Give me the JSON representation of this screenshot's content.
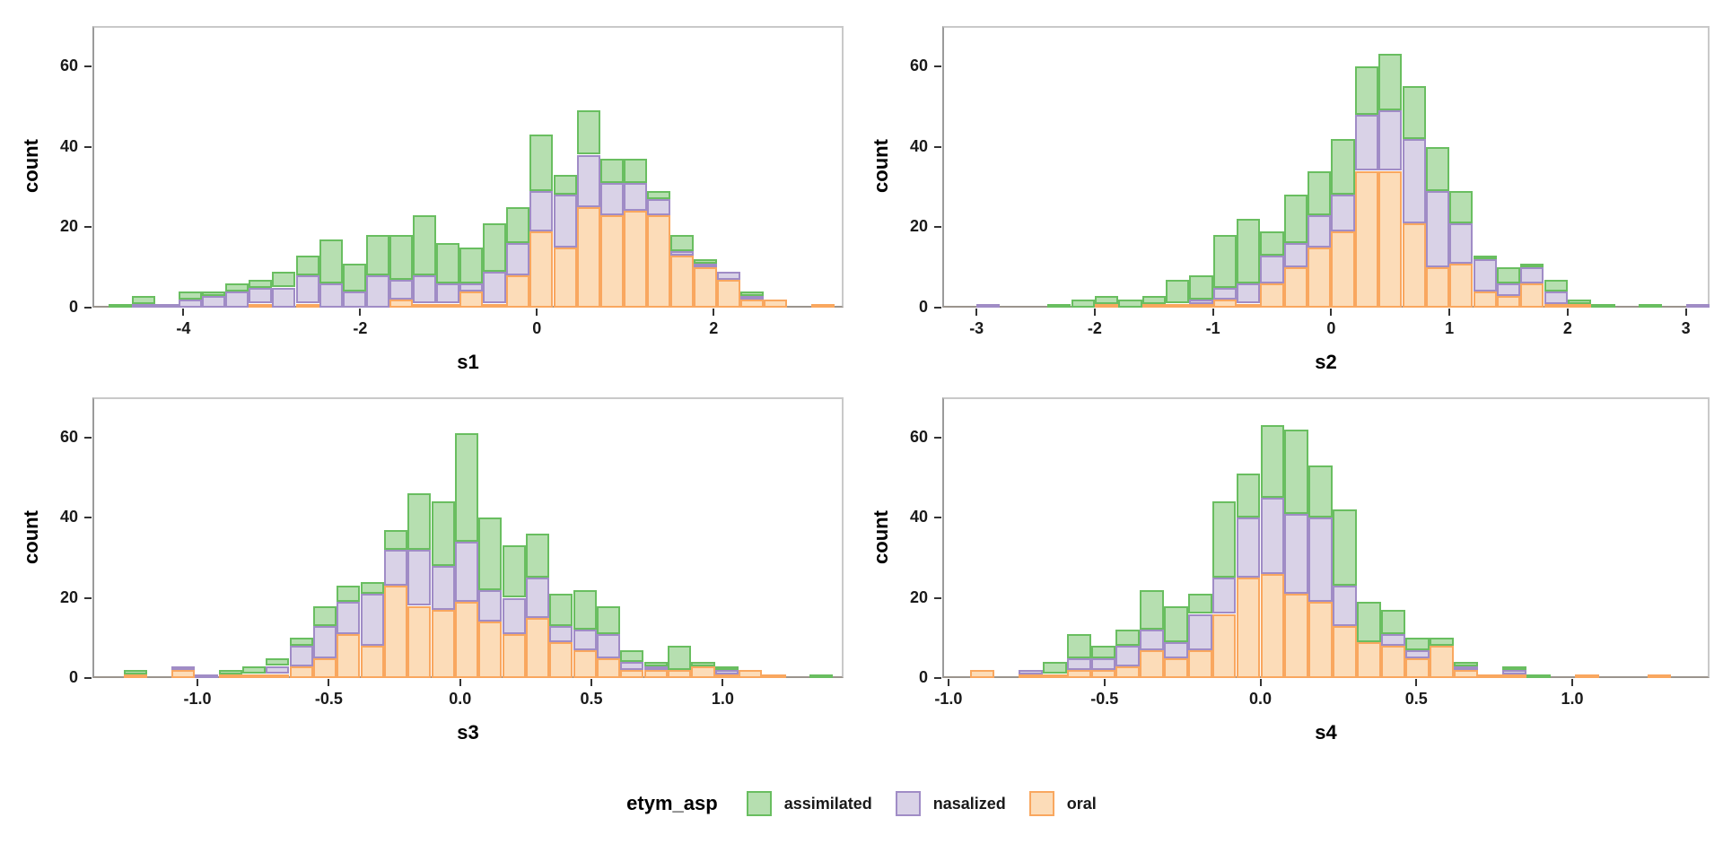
{
  "ylabel": "count",
  "colors": {
    "background": "#ffffff",
    "panel_border": "#c9c9c9",
    "axis_line": "#9b9b9b",
    "tick_color": "#333333",
    "text_color": "#000000",
    "series": {
      "oral": {
        "fill": "#fcdcb8",
        "stroke": "#f9a75f"
      },
      "nasalized": {
        "fill": "#d9d2e7",
        "stroke": "#a08cc6"
      },
      "assimilated": {
        "fill": "#b6dfb0",
        "stroke": "#69be60"
      }
    }
  },
  "legend": {
    "title": "etym_asp",
    "entries": [
      {
        "key": "assimilated",
        "label": "assimilated"
      },
      {
        "key": "nasalized",
        "label": "nasalized"
      },
      {
        "key": "oral",
        "label": "oral"
      }
    ]
  },
  "chart_data": [
    {
      "type": "bar",
      "subtype": "stacked-histogram",
      "title": "",
      "xlabel": "s1",
      "ylabel": "count",
      "grid": false,
      "xlim": [
        -5.03,
        3.47
      ],
      "ylim": [
        0,
        70
      ],
      "x_ticks": [
        -4,
        -2,
        0,
        2
      ],
      "x_tick_labels": [
        "-4",
        "-2",
        "0",
        "2"
      ],
      "y_ticks": [
        0,
        20,
        40,
        60
      ],
      "y_tick_labels": [
        "0",
        "20",
        "40",
        "60"
      ],
      "bin_start": -4.85,
      "bin_width": 0.265,
      "series_order": [
        "oral",
        "nasalized",
        "assimilated"
      ],
      "bars": [
        [
          0,
          0,
          1
        ],
        [
          0,
          1,
          2
        ],
        [
          0,
          1,
          0
        ],
        [
          0,
          2,
          2
        ],
        [
          0,
          3,
          1
        ],
        [
          0,
          4,
          2
        ],
        [
          1,
          4,
          2
        ],
        [
          0,
          5,
          4
        ],
        [
          1,
          7,
          5
        ],
        [
          0,
          6,
          11
        ],
        [
          0,
          4,
          7
        ],
        [
          0,
          8,
          10
        ],
        [
          2,
          5,
          11
        ],
        [
          1,
          7,
          15
        ],
        [
          1,
          5,
          10
        ],
        [
          4,
          2,
          9
        ],
        [
          1,
          8,
          12
        ],
        [
          8,
          8,
          9
        ],
        [
          19,
          10,
          14
        ],
        [
          15,
          13,
          5
        ],
        [
          25,
          13,
          11
        ],
        [
          23,
          8,
          6
        ],
        [
          24,
          7,
          6
        ],
        [
          23,
          4,
          2
        ],
        [
          13,
          1,
          4
        ],
        [
          10,
          1,
          1
        ],
        [
          7,
          2,
          0
        ],
        [
          2,
          1,
          1
        ],
        [
          2,
          0,
          0
        ],
        [
          0,
          0,
          0
        ],
        [
          1,
          0,
          0
        ]
      ]
    },
    {
      "type": "bar",
      "subtype": "stacked-histogram",
      "title": "",
      "xlabel": "s2",
      "ylabel": "count",
      "grid": false,
      "xlim": [
        -3.29,
        3.2
      ],
      "ylim": [
        0,
        70
      ],
      "x_ticks": [
        -3,
        -2,
        -1,
        0,
        1,
        2,
        3
      ],
      "x_tick_labels": [
        "-3",
        "-2",
        "-1",
        "0",
        "1",
        "2",
        "3"
      ],
      "y_ticks": [
        0,
        20,
        40,
        60
      ],
      "y_tick_labels": [
        "0",
        "20",
        "40",
        "60"
      ],
      "bin_start": -3.0,
      "bin_width": 0.2,
      "series_order": [
        "oral",
        "nasalized",
        "assimilated"
      ],
      "bars": [
        [
          0,
          1,
          0
        ],
        [
          0,
          0,
          0
        ],
        [
          0,
          0,
          0
        ],
        [
          0,
          0,
          1
        ],
        [
          0,
          0,
          2
        ],
        [
          1,
          0,
          2
        ],
        [
          0,
          0,
          2
        ],
        [
          1,
          0,
          2
        ],
        [
          1,
          0,
          6
        ],
        [
          1,
          1,
          6
        ],
        [
          2,
          3,
          13
        ],
        [
          1,
          5,
          16
        ],
        [
          6,
          7,
          6
        ],
        [
          10,
          6,
          12
        ],
        [
          15,
          8,
          11
        ],
        [
          19,
          9,
          14
        ],
        [
          34,
          14,
          12
        ],
        [
          34,
          15,
          14
        ],
        [
          21,
          21,
          13
        ],
        [
          10,
          19,
          11
        ],
        [
          11,
          10,
          8
        ],
        [
          4,
          8,
          1
        ],
        [
          3,
          3,
          4
        ],
        [
          6,
          4,
          1
        ],
        [
          1,
          3,
          3
        ],
        [
          1,
          0,
          1
        ],
        [
          0,
          0,
          1
        ],
        [
          0,
          0,
          0
        ],
        [
          0,
          0,
          1
        ],
        [
          0,
          0,
          0
        ],
        [
          0,
          1,
          0
        ]
      ]
    },
    {
      "type": "bar",
      "subtype": "stacked-histogram",
      "title": "",
      "xlabel": "s3",
      "ylabel": "count",
      "grid": false,
      "xlim": [
        -1.4,
        1.46
      ],
      "ylim": [
        0,
        70
      ],
      "x_ticks": [
        -1.0,
        -0.5,
        0.0,
        0.5,
        1.0
      ],
      "x_tick_labels": [
        "-1.0",
        "-0.5",
        "0.0",
        "0.5",
        "1.0"
      ],
      "y_ticks": [
        0,
        20,
        40,
        60
      ],
      "y_tick_labels": [
        "0",
        "20",
        "40",
        "60"
      ],
      "bin_start": -1.28,
      "bin_width": 0.09,
      "series_order": [
        "oral",
        "nasalized",
        "assimilated"
      ],
      "bars": [
        [
          1,
          0,
          1
        ],
        [
          0,
          0,
          0
        ],
        [
          2,
          1,
          0
        ],
        [
          0,
          1,
          0
        ],
        [
          1,
          0,
          1
        ],
        [
          1,
          0,
          2
        ],
        [
          1,
          2,
          2
        ],
        [
          3,
          5,
          2
        ],
        [
          5,
          8,
          5
        ],
        [
          11,
          8,
          4
        ],
        [
          8,
          13,
          3
        ],
        [
          23,
          9,
          5
        ],
        [
          18,
          14,
          14
        ],
        [
          17,
          11,
          16
        ],
        [
          19,
          15,
          27
        ],
        [
          14,
          8,
          18
        ],
        [
          11,
          9,
          13
        ],
        [
          15,
          10,
          11
        ],
        [
          9,
          4,
          8
        ],
        [
          7,
          5,
          10
        ],
        [
          5,
          6,
          7
        ],
        [
          2,
          2,
          3
        ],
        [
          2,
          1,
          1
        ],
        [
          2,
          0,
          6
        ],
        [
          3,
          0,
          1
        ],
        [
          1,
          1,
          1
        ],
        [
          2,
          0,
          0
        ],
        [
          1,
          0,
          0
        ],
        [
          0,
          0,
          0
        ],
        [
          0,
          0,
          1
        ]
      ]
    },
    {
      "type": "bar",
      "subtype": "stacked-histogram",
      "title": "",
      "xlabel": "s4",
      "ylabel": "count",
      "grid": false,
      "xlim": [
        -1.02,
        1.44
      ],
      "ylim": [
        0,
        70
      ],
      "x_ticks": [
        -1.0,
        -0.5,
        0.0,
        0.5,
        1.0
      ],
      "x_tick_labels": [
        "-1.0",
        "-0.5",
        "0.0",
        "0.5",
        "1.0"
      ],
      "y_ticks": [
        0,
        20,
        40,
        60
      ],
      "y_tick_labels": [
        "0",
        "20",
        "40",
        "60"
      ],
      "bin_start": -0.93,
      "bin_width": 0.0775,
      "series_order": [
        "oral",
        "nasalized",
        "assimilated"
      ],
      "bars": [
        [
          2,
          0,
          0
        ],
        [
          0,
          0,
          0
        ],
        [
          1,
          1,
          0
        ],
        [
          1,
          0,
          3
        ],
        [
          2,
          3,
          6
        ],
        [
          2,
          3,
          3
        ],
        [
          3,
          5,
          4
        ],
        [
          7,
          5,
          10
        ],
        [
          5,
          4,
          9
        ],
        [
          7,
          9,
          5
        ],
        [
          16,
          9,
          19
        ],
        [
          25,
          15,
          11
        ],
        [
          26,
          19,
          18
        ],
        [
          21,
          20,
          21
        ],
        [
          19,
          21,
          13
        ],
        [
          13,
          10,
          19
        ],
        [
          9,
          0,
          10
        ],
        [
          8,
          3,
          6
        ],
        [
          5,
          2,
          3
        ],
        [
          8,
          0,
          2
        ],
        [
          2,
          1,
          1
        ],
        [
          1,
          0,
          0
        ],
        [
          1,
          1,
          1
        ],
        [
          0,
          0,
          1
        ],
        [
          0,
          0,
          0
        ],
        [
          1,
          0,
          0
        ],
        [
          0,
          0,
          0
        ],
        [
          0,
          0,
          0
        ],
        [
          1,
          0,
          0
        ]
      ]
    }
  ]
}
